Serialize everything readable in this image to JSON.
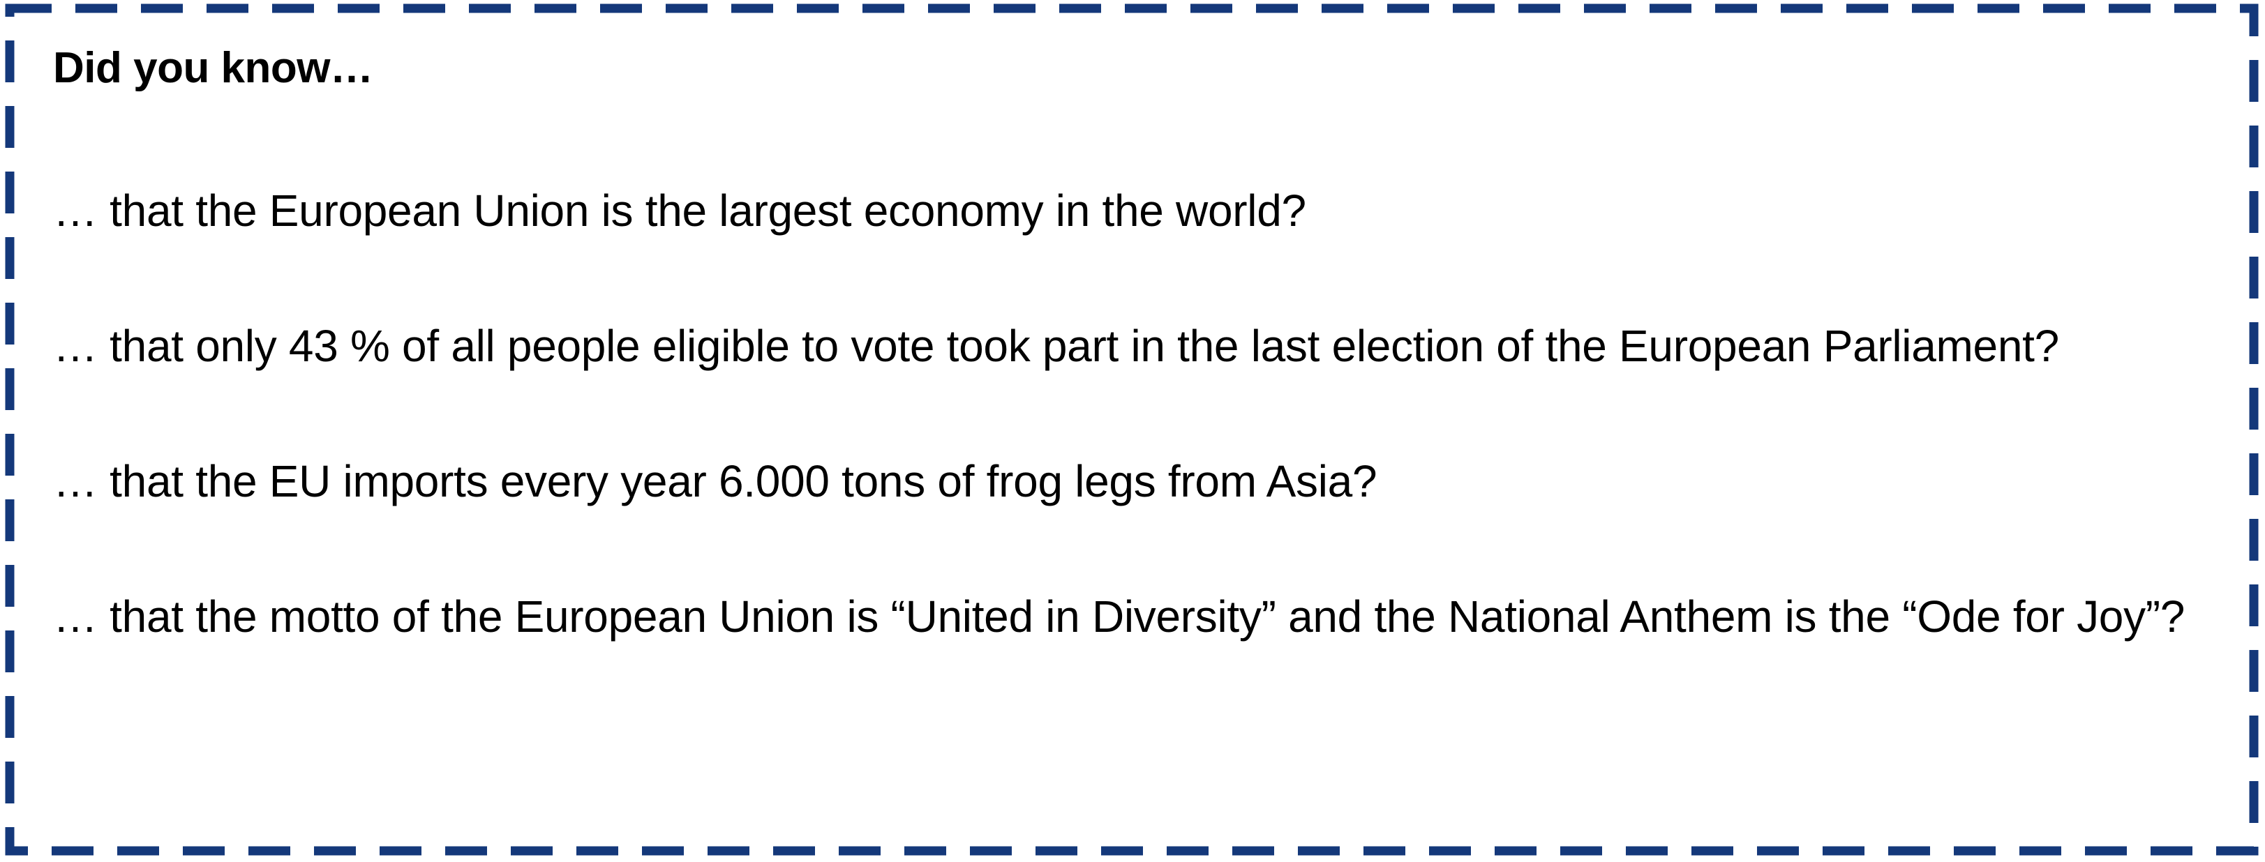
{
  "box": {
    "border_color": "#14387a"
  },
  "heading": "Did you know…",
  "facts": [
    "… that the European Union is the largest economy in the world?",
    "… that only 43 % of all people eligible to vote took part in the last election of the European Parliament?",
    "… that the EU imports every year 6.000 tons of frog legs from Asia?",
    "… that the motto of the European Union is “United in Diversity” and the National Anthem is the “Ode for Joy”?"
  ]
}
